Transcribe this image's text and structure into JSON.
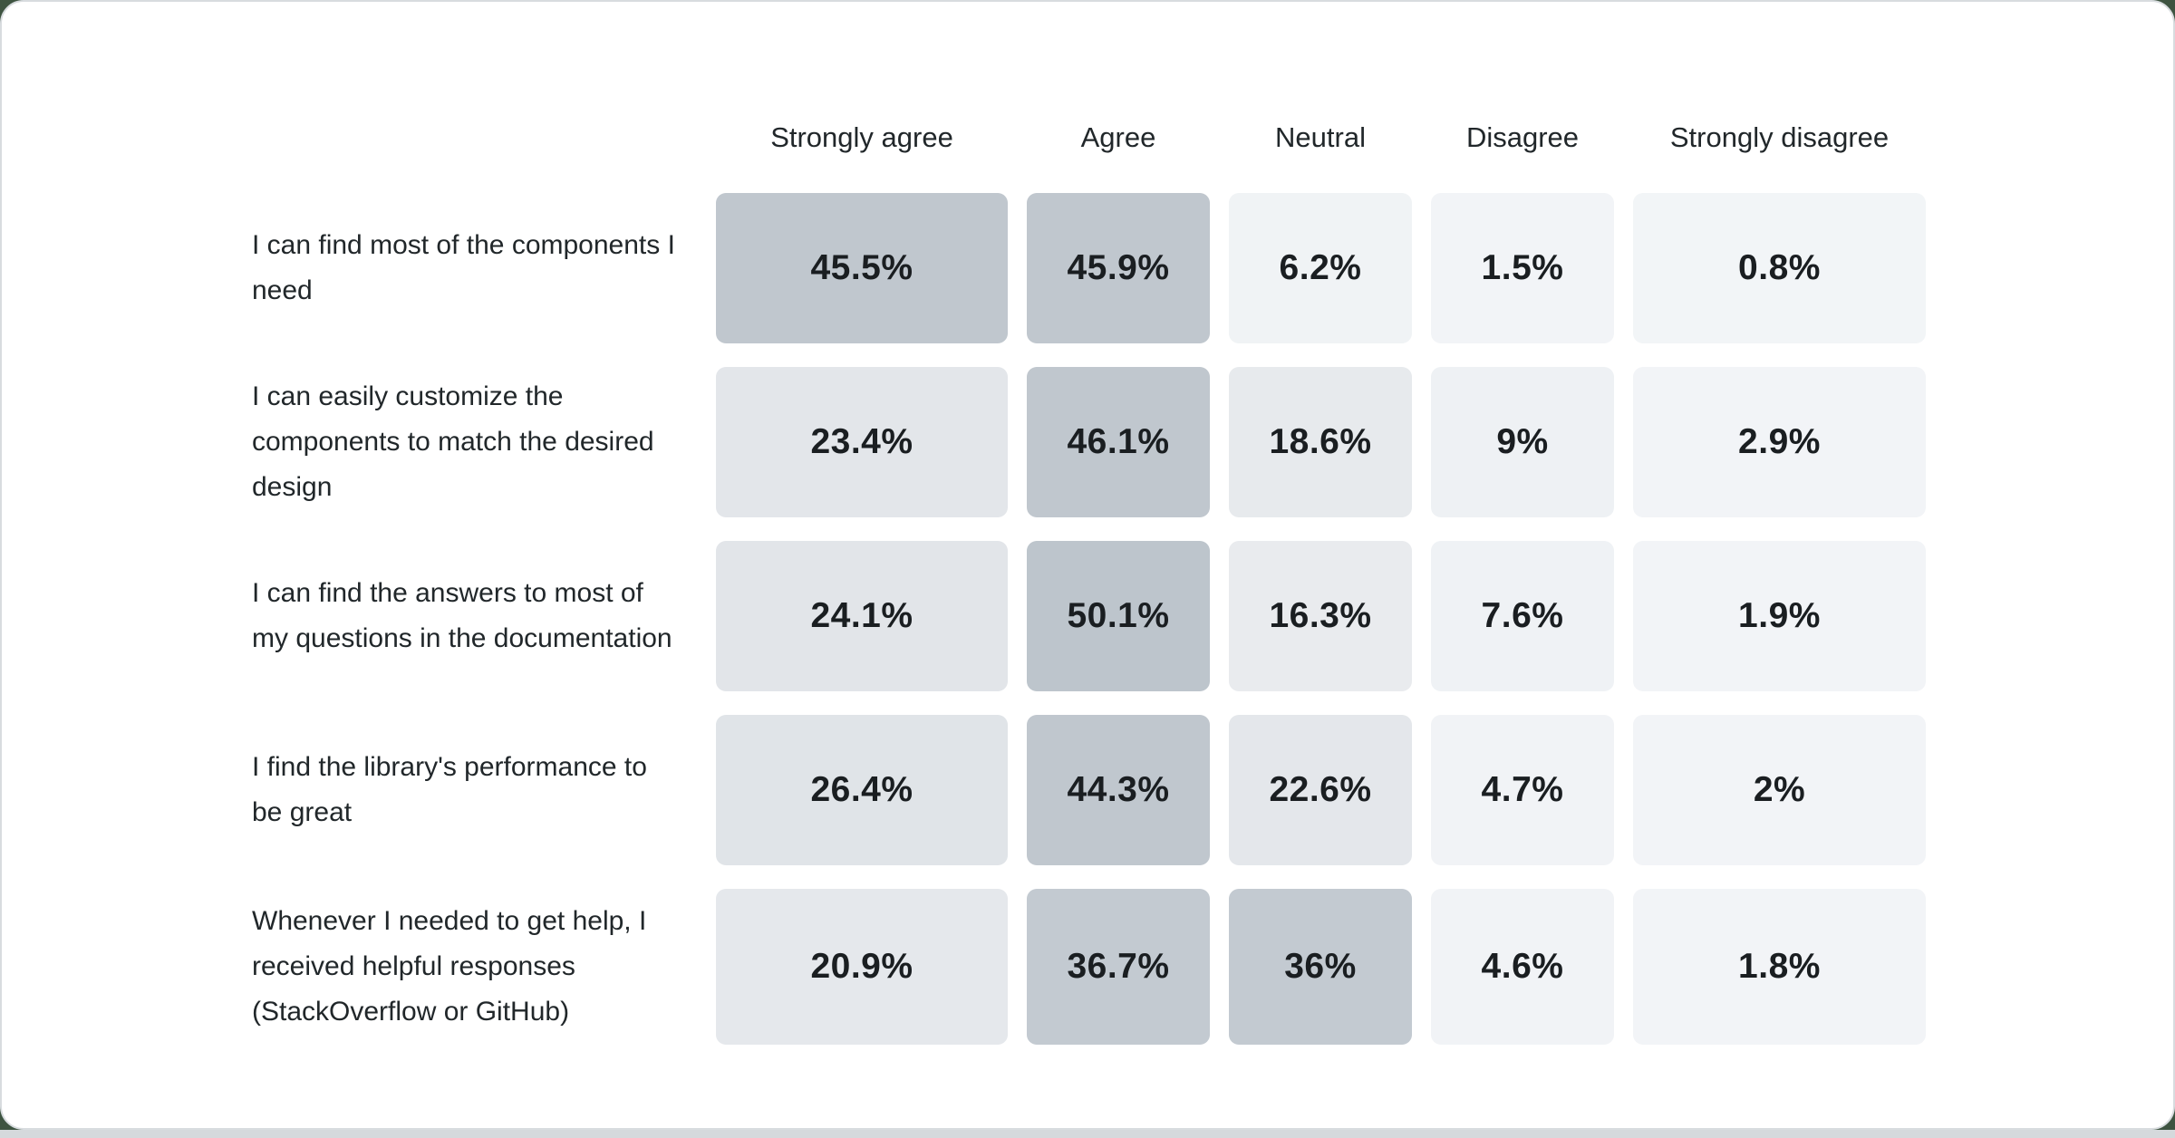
{
  "page": {
    "background_color": "#3e5441",
    "card_background": "#ffffff",
    "card_border_color": "#d8dcdf",
    "bottom_bar_color": "#d5d9dc",
    "header_text_color": "#21272a",
    "label_text_color": "#21272a",
    "value_text_color": "#1a1e21"
  },
  "chart_data": {
    "type": "heatmap",
    "title": "",
    "columns": [
      "Strongly agree",
      "Agree",
      "Neutral",
      "Disagree",
      "Strongly disagree"
    ],
    "rows": [
      {
        "label": "I can find most of the components I need",
        "values": [
          45.5,
          45.9,
          6.2,
          1.5,
          0.8
        ],
        "display": [
          "45.5%",
          "45.9%",
          "6.2%",
          "1.5%",
          "0.8%"
        ],
        "colors": [
          "#c0c7ce",
          "#c0c7ce",
          "#f0f3f5",
          "#f2f4f7",
          "#f2f5f7"
        ]
      },
      {
        "label": "I can easily customize the components to match the desired design",
        "values": [
          23.4,
          46.1,
          18.6,
          9,
          2.9
        ],
        "display": [
          "23.4%",
          "46.1%",
          "18.6%",
          "9%",
          "2.9%"
        ],
        "colors": [
          "#e3e6ea",
          "#c0c7ce",
          "#e7eaed",
          "#eef1f4",
          "#f2f4f7"
        ]
      },
      {
        "label": "I can find the answers to most of my questions in the documentation",
        "values": [
          24.1,
          50.1,
          16.3,
          7.6,
          1.9
        ],
        "display": [
          "24.1%",
          "50.1%",
          "16.3%",
          "7.6%",
          "1.9%"
        ],
        "colors": [
          "#e2e5e9",
          "#bdc5cc",
          "#e9ebee",
          "#eff2f5",
          "#f2f4f7"
        ]
      },
      {
        "label": "I find the library's performance to be great",
        "values": [
          26.4,
          44.3,
          22.6,
          4.7,
          2
        ],
        "display": [
          "26.4%",
          "44.3%",
          "22.6%",
          "4.7%",
          "2%"
        ],
        "colors": [
          "#e0e4e8",
          "#c0c7ce",
          "#e4e7eb",
          "#f1f3f6",
          "#f2f4f7"
        ]
      },
      {
        "label": "Whenever I needed to get help, I received helpful responses (StackOverflow or GitHub)",
        "values": [
          20.9,
          36.7,
          36,
          4.6,
          1.8
        ],
        "display": [
          "20.9%",
          "36.7%",
          "36%",
          "4.6%",
          "1.8%"
        ],
        "colors": [
          "#e5e8ec",
          "#c3cad1",
          "#c3cad1",
          "#f1f3f6",
          "#f2f4f7"
        ]
      }
    ],
    "color_scale": {
      "low": "#f2f5f7",
      "high": "#bdc5cc",
      "domain": [
        0,
        50.1
      ]
    },
    "legend": "none",
    "grid": false
  }
}
